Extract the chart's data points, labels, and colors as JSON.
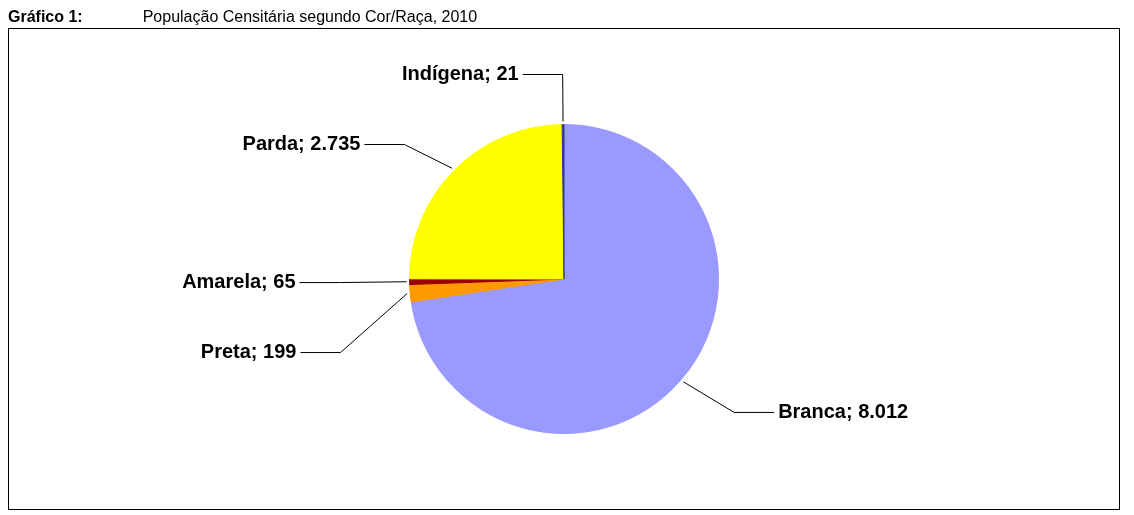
{
  "chart_data": {
    "type": "pie",
    "title": "Gráfico 1:",
    "subtitle": "População Censitária segundo Cor/Raça, 2010",
    "categories": [
      "Branca",
      "Preta",
      "Amarela",
      "Parda",
      "Indígena"
    ],
    "values": [
      8012,
      199,
      65,
      2735,
      21
    ],
    "value_labels": [
      "8.012",
      "199",
      "65",
      "2.735",
      "21"
    ],
    "colors": [
      "#9999ff",
      "#ff9900",
      "#990000",
      "#ffff00",
      "#333399"
    ],
    "legend": false
  }
}
